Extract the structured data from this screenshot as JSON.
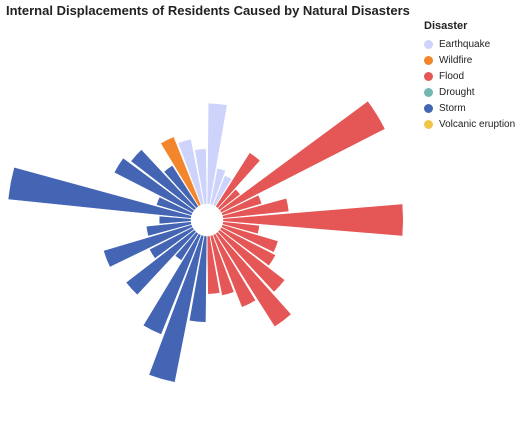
{
  "chart_data": {
    "type": "radial_bar",
    "title": "Internal Displacements of Residents Caused by Natural Disasters",
    "legend": {
      "title": "Disaster",
      "position": "top-right",
      "items": [
        {
          "name": "Earthquake",
          "color": "#cdd3fb"
        },
        {
          "name": "Wildfire",
          "color": "#f3862c"
        },
        {
          "name": "Flood",
          "color": "#e45756"
        },
        {
          "name": "Drought",
          "color": "#72b7b2"
        },
        {
          "name": "Storm",
          "color": "#4464b4"
        },
        {
          "name": "Volcanic eruption",
          "color": "#f0c64a"
        }
      ]
    },
    "note": "Wedges in clockwise order starting at 12 o'clock; value = relative displacement scale (max 1.0)",
    "records": [
      {
        "disaster": "Earthquake",
        "value": 0.3
      },
      {
        "disaster": "Earthquake",
        "value": 0.04
      },
      {
        "disaster": "Earthquake",
        "value": 0.03
      },
      {
        "disaster": "Flood",
        "value": 0.12
      },
      {
        "disaster": "Flood",
        "value": 0.02
      },
      {
        "disaster": "Flood",
        "value": 1.0
      },
      {
        "disaster": "Flood",
        "value": 0.05
      },
      {
        "disaster": "Flood",
        "value": 0.13
      },
      {
        "disaster": "Flood",
        "value": 0.96
      },
      {
        "disaster": "Flood",
        "value": 0.04
      },
      {
        "disaster": "Flood",
        "value": 0.1
      },
      {
        "disaster": "Flood",
        "value": 0.11
      },
      {
        "disaster": "Flood",
        "value": 0.2
      },
      {
        "disaster": "Flood",
        "value": 0.36
      },
      {
        "disaster": "Flood",
        "value": 0.18
      },
      {
        "disaster": "Flood",
        "value": 0.11
      },
      {
        "disaster": "Flood",
        "value": 0.1
      },
      {
        "disaster": "Storm",
        "value": 0.22
      },
      {
        "disaster": "Storm",
        "value": 0.66
      },
      {
        "disaster": "Storm",
        "value": 0.34
      },
      {
        "disaster": "Storm",
        "value": 0.03
      },
      {
        "disaster": "Storm",
        "value": 0.22
      },
      {
        "disaster": "Storm",
        "value": 0.07
      },
      {
        "disaster": "Storm",
        "value": 0.25
      },
      {
        "disaster": "Storm",
        "value": 0.06
      },
      {
        "disaster": "Storm",
        "value": 0.03
      },
      {
        "disaster": "Storm",
        "value": 1.0
      },
      {
        "disaster": "Storm",
        "value": 0.04
      },
      {
        "disaster": "Storm",
        "value": 0.23
      },
      {
        "disaster": "Storm",
        "value": 0.19
      },
      {
        "disaster": "Storm",
        "value": 0.07
      },
      {
        "disaster": "Wildfire",
        "value": 0.16
      },
      {
        "disaster": "Earthquake",
        "value": 0.13
      },
      {
        "disaster": "Earthquake",
        "value": 0.09
      }
    ]
  }
}
